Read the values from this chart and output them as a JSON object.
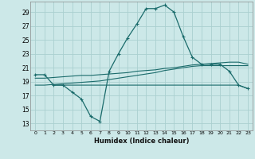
{
  "xlabel": "Humidex (Indice chaleur)",
  "bg_color": "#cce8e8",
  "grid_color": "#aad0d0",
  "line_color": "#1a6b6b",
  "xlim": [
    -0.5,
    23.5
  ],
  "ylim": [
    12,
    30.5
  ],
  "yticks": [
    13,
    15,
    17,
    19,
    21,
    23,
    25,
    27,
    29
  ],
  "xticks": [
    0,
    1,
    2,
    3,
    4,
    5,
    6,
    7,
    8,
    9,
    10,
    11,
    12,
    13,
    14,
    15,
    16,
    17,
    18,
    19,
    20,
    21,
    22,
    23
  ],
  "line1": {
    "x": [
      0,
      1,
      2,
      3,
      4,
      5,
      6,
      7,
      8,
      9,
      10,
      11,
      12,
      13,
      14,
      15,
      16,
      17,
      18,
      19,
      20,
      21,
      22,
      23
    ],
    "y": [
      20.0,
      20.0,
      18.5,
      18.5,
      17.5,
      16.5,
      14.0,
      13.3,
      20.5,
      23.0,
      25.3,
      27.3,
      29.5,
      29.5,
      30.0,
      29.0,
      25.5,
      22.5,
      21.5,
      21.5,
      21.5,
      20.5,
      18.5,
      18.0
    ],
    "marker": true
  },
  "line2": {
    "x": [
      2,
      3,
      4,
      5,
      6,
      7,
      8,
      9,
      10,
      11,
      12,
      13,
      14,
      15,
      16,
      17,
      18,
      19,
      20,
      21,
      22,
      23
    ],
    "y": [
      18.5,
      18.5,
      18.5,
      18.5,
      18.5,
      18.5,
      18.5,
      18.5,
      18.5,
      18.5,
      18.5,
      18.5,
      18.5,
      18.5,
      18.5,
      18.5,
      18.5,
      18.5,
      18.5,
      18.5,
      18.5,
      18.0
    ],
    "marker": false
  },
  "line3": {
    "x": [
      0,
      1,
      2,
      3,
      4,
      5,
      6,
      7,
      8,
      9,
      10,
      11,
      12,
      13,
      14,
      15,
      16,
      17,
      18,
      19,
      20,
      21,
      22,
      23
    ],
    "y": [
      19.5,
      19.5,
      19.6,
      19.7,
      19.8,
      19.9,
      19.9,
      20.0,
      20.1,
      20.2,
      20.3,
      20.5,
      20.6,
      20.7,
      20.9,
      21.0,
      21.2,
      21.4,
      21.5,
      21.6,
      21.7,
      21.8,
      21.8,
      21.5
    ],
    "marker": false
  },
  "line4": {
    "x": [
      0,
      1,
      2,
      3,
      4,
      5,
      6,
      7,
      8,
      9,
      10,
      11,
      12,
      13,
      14,
      15,
      16,
      17,
      18,
      19,
      20,
      21,
      22,
      23
    ],
    "y": [
      18.5,
      18.5,
      18.6,
      18.7,
      18.8,
      18.9,
      19.0,
      19.1,
      19.3,
      19.5,
      19.7,
      19.9,
      20.1,
      20.3,
      20.6,
      20.8,
      21.0,
      21.2,
      21.3,
      21.3,
      21.3,
      21.3,
      21.3,
      21.3
    ],
    "marker": false
  }
}
